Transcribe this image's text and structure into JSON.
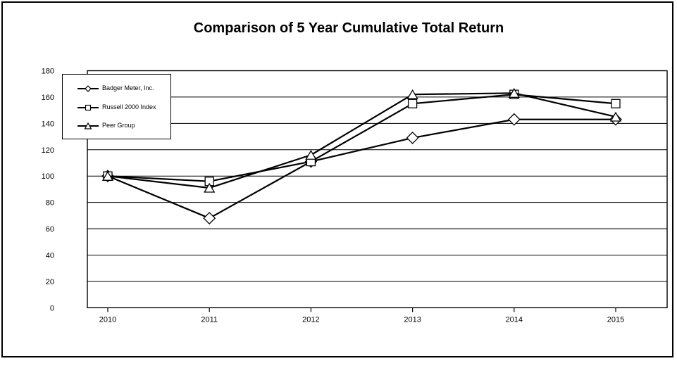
{
  "window": {
    "background": "#ffffff",
    "border_color": "#000000"
  },
  "chart_data": {
    "type": "line",
    "title": "Comparison of 5 Year Cumulative Total Return",
    "categories": [
      "2010",
      "2011",
      "2012",
      "2013",
      "2014",
      "2015"
    ],
    "series": [
      {
        "name": "Badger Meter, Inc.",
        "marker": "diamond",
        "values": [
          100,
          68,
          111,
          129,
          143,
          143
        ]
      },
      {
        "name": "Russell 2000 Index",
        "marker": "square",
        "values": [
          100,
          96,
          111,
          155,
          162,
          155
        ]
      },
      {
        "name": "Peer Group",
        "marker": "triangle",
        "values": [
          100,
          91,
          116,
          162,
          163,
          145
        ]
      }
    ],
    "xlabel": "",
    "ylabel": "",
    "ylim": [
      0,
      180
    ],
    "yticks": [
      0,
      20,
      40,
      60,
      80,
      100,
      120,
      140,
      160,
      180
    ],
    "grid": true,
    "legend_position": "top-left-inside",
    "line_color": "#000000",
    "marker_fill": "#ffffff",
    "plot_background": "#ffffff"
  }
}
